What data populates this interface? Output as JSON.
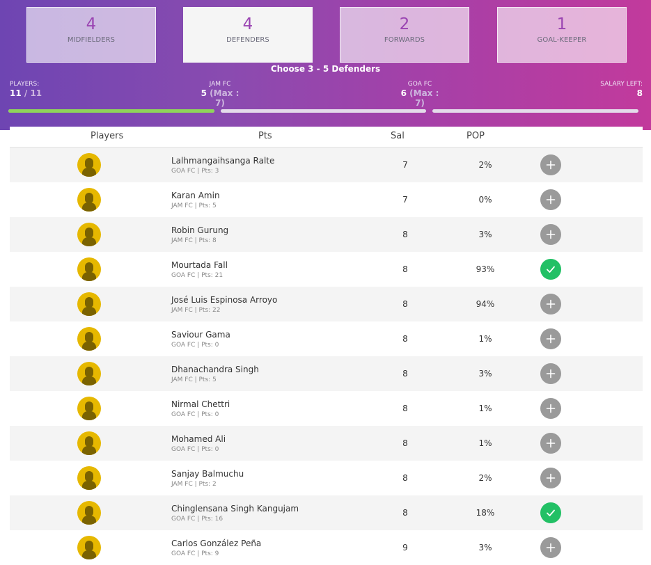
{
  "positions": [
    {
      "count": "4",
      "label": "MIDFIELDERS",
      "active": false
    },
    {
      "count": "4",
      "label": "DEFENDERS",
      "active": true
    },
    {
      "count": "2",
      "label": "FORWARDS",
      "active": false
    },
    {
      "count": "1",
      "label": "GOAL-KEEPER",
      "active": false
    }
  ],
  "instruction": "Choose 3 - 5 Defenders",
  "stats": {
    "players_label": "PLAYERS:",
    "players_selected": "11",
    "players_total": " / 11",
    "team1_label": "JAM FC",
    "team1_count": "5",
    "team1_max": " (Max : 7)",
    "team2_label": "GOA FC",
    "team2_count": "6",
    "team2_max": " (Max : 7)",
    "salary_label": "SALARY LEFT:",
    "salary_value": "8"
  },
  "progress_fill_fraction": 1.0,
  "colors": {
    "accent": "#9a44b2",
    "selected": "#22c065",
    "add": "#9a9a9a",
    "progress": "#8fd45a"
  },
  "table": {
    "headers": {
      "players": "Players",
      "pts": "Pts",
      "sal": "Sal",
      "pop": "POP"
    },
    "rows": [
      {
        "name": "Lalhmangaihsanga Ralte",
        "meta": "GOA FC | Pts: 3",
        "sal": "7",
        "pop": "2%",
        "selected": false
      },
      {
        "name": "Karan Amin",
        "meta": "JAM FC | Pts: 5",
        "sal": "7",
        "pop": "0%",
        "selected": false
      },
      {
        "name": "Robin Gurung",
        "meta": "JAM FC | Pts: 8",
        "sal": "8",
        "pop": "3%",
        "selected": false
      },
      {
        "name": "Mourtada Fall",
        "meta": "GOA FC | Pts: 21",
        "sal": "8",
        "pop": "93%",
        "selected": true
      },
      {
        "name": "José Luis Espinosa Arroyo",
        "meta": "JAM FC | Pts: 22",
        "sal": "8",
        "pop": "94%",
        "selected": false
      },
      {
        "name": "Saviour Gama",
        "meta": "GOA FC | Pts: 0",
        "sal": "8",
        "pop": "1%",
        "selected": false
      },
      {
        "name": "Dhanachandra Singh",
        "meta": "JAM FC | Pts: 5",
        "sal": "8",
        "pop": "3%",
        "selected": false
      },
      {
        "name": "Nirmal Chettri",
        "meta": "GOA FC | Pts: 0",
        "sal": "8",
        "pop": "1%",
        "selected": false
      },
      {
        "name": "Mohamed Ali",
        "meta": "GOA FC | Pts: 0",
        "sal": "8",
        "pop": "1%",
        "selected": false
      },
      {
        "name": "Sanjay Balmuchu",
        "meta": "JAM FC | Pts: 2",
        "sal": "8",
        "pop": "2%",
        "selected": false
      },
      {
        "name": "Chinglensana Singh Kangujam",
        "meta": "GOA FC | Pts: 16",
        "sal": "8",
        "pop": "18%",
        "selected": true
      },
      {
        "name": "Carlos González Peña",
        "meta": "GOA FC | Pts: 9",
        "sal": "9",
        "pop": "3%",
        "selected": false
      }
    ]
  }
}
